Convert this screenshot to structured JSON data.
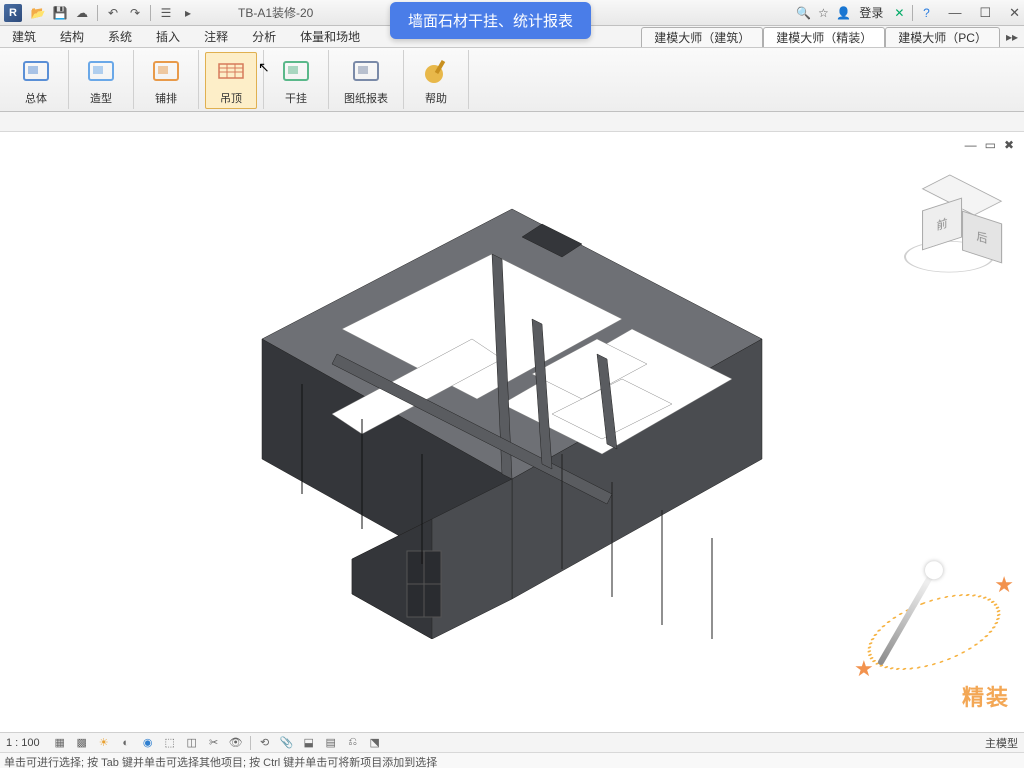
{
  "title": "TB-A1装修-20",
  "login_label": "登录",
  "qat": [
    "open",
    "save",
    "cloud",
    "undo",
    "redo",
    "redo2",
    "link",
    "play"
  ],
  "win": {
    "min": "—",
    "max": "☐",
    "close": "✕"
  },
  "menus": [
    "建筑",
    "结构",
    "系统",
    "插入",
    "注释",
    "分析",
    "体量和场地"
  ],
  "extra_tabs": [
    {
      "label": "建模大师（建筑）",
      "active": false
    },
    {
      "label": "建模大师（精装）",
      "active": true
    },
    {
      "label": "建模大师（PC）",
      "active": false
    }
  ],
  "tooltip": "墙面石材干挂、统计报表",
  "ribbon": [
    {
      "id": "zongti",
      "label": "总体",
      "color": "#5a8fd6",
      "active": false
    },
    {
      "id": "zaoxing",
      "label": "造型",
      "color": "#6aa8e8",
      "active": false
    },
    {
      "id": "pupai",
      "label": "铺排",
      "color": "#e89a4a",
      "active": false
    },
    {
      "id": "diaoding",
      "label": "吊顶",
      "color": "#d67a5a",
      "active": true
    },
    {
      "id": "gangua",
      "label": "干挂",
      "color": "#5ab88a",
      "active": false
    },
    {
      "id": "baobiao",
      "label": "图纸报表",
      "color": "#7a8aa8",
      "active": false
    },
    {
      "id": "bangzhu",
      "label": "帮助",
      "color": "#e8b84a",
      "active": false
    }
  ],
  "scale": "1 : 100",
  "status_right": "主模型",
  "hint": "单击可进行选择; 按 Tab 键并单击可选择其他项目; 按 Ctrl 键并单击可将新项目添加到选择",
  "viewcube": {
    "front": "前",
    "right": "后"
  },
  "watermark_text": "精装",
  "model": {
    "walls_outer": "#4a4c50",
    "walls_top": "#6e7075",
    "walls_shadow": "#34363a",
    "floor": "#ffffff",
    "inner_wall": "#5a5c60"
  }
}
